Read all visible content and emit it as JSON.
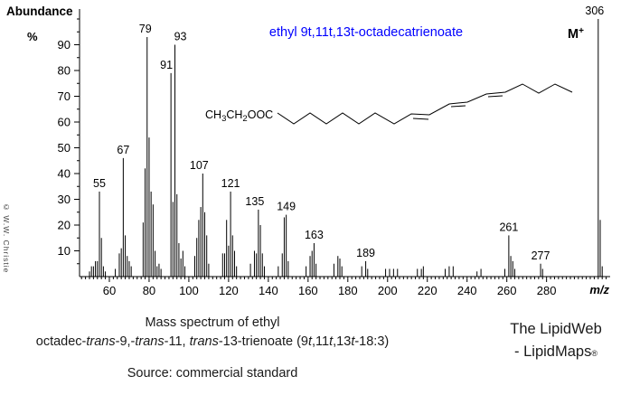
{
  "header": {
    "y_axis_title": "Abundance",
    "y_axis_unit": "%",
    "compound_title": "ethyl 9t,11t,13t-octadecatrienoate",
    "compound_title_color": "#0000FF",
    "molecular_ion": {
      "base": "M",
      "sup": "+"
    }
  },
  "watermark": "© W.W. Christie",
  "structure": {
    "formula_segments": [
      {
        "t": "CH"
      },
      {
        "t": "3",
        "sub": true
      },
      {
        "t": "CH"
      },
      {
        "t": "2",
        "sub": true
      },
      {
        "t": "OOC"
      }
    ]
  },
  "chart_data": {
    "type": "bar",
    "title": "ethyl 9t,11t,13t-octadecatrienoate",
    "xlabel": "m/z",
    "ylabel": "Abundance %",
    "xlim": [
      45,
      312
    ],
    "ylim": [
      0,
      100
    ],
    "grid": false,
    "x_major_ticks": [
      60,
      80,
      100,
      120,
      140,
      160,
      180,
      200,
      220,
      240,
      260,
      280
    ],
    "y_major_ticks": [
      10,
      20,
      30,
      40,
      50,
      60,
      70,
      80,
      90
    ],
    "x_minor_step": 2,
    "y_minor_step": 5,
    "peaks": [
      [
        50,
        2
      ],
      [
        51,
        4
      ],
      [
        52,
        4
      ],
      [
        53,
        6
      ],
      [
        54,
        6
      ],
      [
        55,
        33
      ],
      [
        56,
        15
      ],
      [
        57,
        4
      ],
      [
        58,
        2
      ],
      [
        63,
        3
      ],
      [
        65,
        9
      ],
      [
        66,
        11
      ],
      [
        67,
        46
      ],
      [
        68,
        16
      ],
      [
        69,
        8
      ],
      [
        70,
        6
      ],
      [
        71,
        4
      ],
      [
        77,
        21
      ],
      [
        78,
        42
      ],
      [
        79,
        93
      ],
      [
        80,
        54
      ],
      [
        81,
        33
      ],
      [
        82,
        28
      ],
      [
        83,
        10
      ],
      [
        84,
        4
      ],
      [
        85,
        5
      ],
      [
        86,
        3
      ],
      [
        91,
        79
      ],
      [
        92,
        29
      ],
      [
        93,
        90
      ],
      [
        94,
        32
      ],
      [
        95,
        13
      ],
      [
        96,
        7
      ],
      [
        97,
        10
      ],
      [
        98,
        4
      ],
      [
        103,
        8
      ],
      [
        104,
        15
      ],
      [
        105,
        22
      ],
      [
        106,
        27
      ],
      [
        107,
        40
      ],
      [
        108,
        25
      ],
      [
        109,
        16
      ],
      [
        110,
        5
      ],
      [
        117,
        9
      ],
      [
        118,
        9
      ],
      [
        119,
        22
      ],
      [
        120,
        12
      ],
      [
        121,
        33
      ],
      [
        122,
        16
      ],
      [
        123,
        10
      ],
      [
        124,
        4
      ],
      [
        131,
        5
      ],
      [
        133,
        10
      ],
      [
        134,
        9
      ],
      [
        135,
        26
      ],
      [
        136,
        20
      ],
      [
        137,
        9
      ],
      [
        138,
        4
      ],
      [
        145,
        4
      ],
      [
        147,
        9
      ],
      [
        148,
        23
      ],
      [
        149,
        24
      ],
      [
        150,
        6
      ],
      [
        159,
        4
      ],
      [
        161,
        8
      ],
      [
        162,
        10
      ],
      [
        163,
        13
      ],
      [
        164,
        5
      ],
      [
        173,
        5
      ],
      [
        175,
        8
      ],
      [
        176,
        7
      ],
      [
        177,
        4
      ],
      [
        187,
        4
      ],
      [
        189,
        6
      ],
      [
        190,
        3
      ],
      [
        199,
        3
      ],
      [
        201,
        3
      ],
      [
        203,
        3
      ],
      [
        205,
        3
      ],
      [
        215,
        3
      ],
      [
        217,
        3
      ],
      [
        218,
        4
      ],
      [
        229,
        3
      ],
      [
        231,
        4
      ],
      [
        233,
        4
      ],
      [
        245,
        2
      ],
      [
        247,
        3
      ],
      [
        259,
        3
      ],
      [
        261,
        16
      ],
      [
        262,
        8
      ],
      [
        263,
        6
      ],
      [
        264,
        3
      ],
      [
        277,
        5
      ],
      [
        278,
        3
      ],
      [
        306,
        100
      ],
      [
        307,
        22
      ],
      [
        308,
        4
      ]
    ],
    "labeled_peaks": [
      {
        "mz": 55,
        "label": "55"
      },
      {
        "mz": 67,
        "label": "67"
      },
      {
        "mz": 79,
        "label": "79",
        "dx": -2
      },
      {
        "mz": 91,
        "label": "91",
        "dx": -5
      },
      {
        "mz": 93,
        "label": "93",
        "dx": 6
      },
      {
        "mz": 107,
        "label": "107",
        "dx": -4
      },
      {
        "mz": 121,
        "label": "121"
      },
      {
        "mz": 135,
        "label": "135",
        "dx": -4
      },
      {
        "mz": 149,
        "label": "149"
      },
      {
        "mz": 163,
        "label": "163"
      },
      {
        "mz": 189,
        "label": "189"
      },
      {
        "mz": 261,
        "label": "261"
      },
      {
        "mz": 277,
        "label": "277"
      },
      {
        "mz": 306,
        "label": "306",
        "dx": -4
      }
    ]
  },
  "footer": {
    "caption_line1": "Mass spectrum of ethyl",
    "caption_line2_segments": [
      {
        "t": "octadec-"
      },
      {
        "t": "trans",
        "i": true
      },
      {
        "t": "-9,-"
      },
      {
        "t": "trans",
        "i": true
      },
      {
        "t": "-11, "
      },
      {
        "t": "trans",
        "i": true
      },
      {
        "t": "-13-trienoate (9"
      },
      {
        "t": "t",
        "i": true
      },
      {
        "t": ",11"
      },
      {
        "t": "t",
        "i": true
      },
      {
        "t": ",13"
      },
      {
        "t": "t",
        "i": true
      },
      {
        "t": "-18:3)"
      }
    ],
    "source_line": "Source: commercial standard",
    "brand_line1": "The LipidWeb",
    "brand_line2": "- LipidMaps",
    "brand_reg": "®"
  }
}
